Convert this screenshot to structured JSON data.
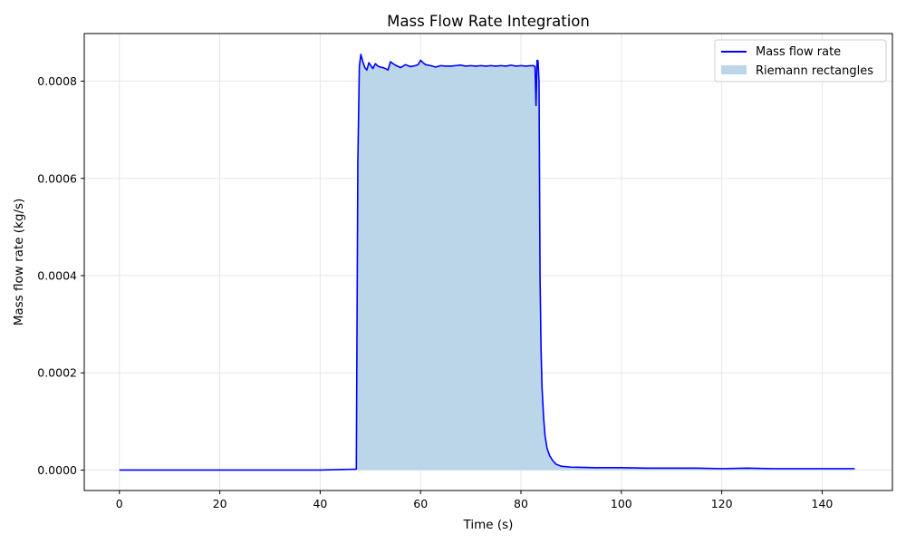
{
  "chart_data": {
    "type": "line",
    "title": "Mass Flow Rate Integration",
    "xlabel": "Time (s)",
    "ylabel": "Mass flow rate (kg/s)",
    "xlim": [
      -7,
      154
    ],
    "ylim": [
      -4.2e-05,
      0.000898
    ],
    "xticks": [
      0,
      20,
      40,
      60,
      80,
      100,
      120,
      140
    ],
    "xtick_labels": [
      "0",
      "20",
      "40",
      "60",
      "80",
      "100",
      "120",
      "140"
    ],
    "yticks": [
      0,
      0.0002,
      0.0004,
      0.0006,
      0.0008
    ],
    "ytick_labels": [
      "0.0000",
      "0.0002",
      "0.0004",
      "0.0006",
      "0.0008"
    ],
    "grid": true,
    "legend_position": "top-right",
    "colors": {
      "line": "#0000ff",
      "fill": "#bad6e8",
      "grid": "#e6e6e6"
    },
    "series": [
      {
        "name": "Mass flow rate",
        "kind": "line",
        "x": [
          0,
          10,
          20,
          30,
          40,
          47.2,
          47.5,
          47.8,
          48.1,
          48.5,
          48.9,
          49.3,
          49.7,
          50.1,
          50.5,
          51.0,
          51.5,
          52.0,
          52.5,
          53.0,
          53.5,
          54.0,
          54.5,
          55.0,
          56.0,
          57.0,
          58.0,
          59.0,
          59.5,
          60.0,
          60.5,
          61.0,
          62.0,
          63.0,
          64.0,
          65.0,
          66.0,
          67.0,
          68.0,
          69.0,
          70.0,
          71.0,
          72.0,
          73.0,
          74.0,
          75.0,
          76.0,
          77.0,
          78.0,
          79.0,
          80.0,
          81.0,
          82.0,
          82.5,
          82.8,
          83.0,
          83.2,
          83.4,
          83.6,
          83.8,
          84.0,
          84.2,
          84.5,
          84.8,
          85.2,
          85.7,
          86.3,
          87.0,
          88.0,
          90.0,
          95.0,
          100.0,
          105.0,
          110.0,
          115.0,
          120.0,
          125.0,
          130.0,
          135.0,
          140.0,
          146.5
        ],
        "y": [
          0,
          0,
          0,
          0,
          0,
          2e-06,
          0.00063,
          0.00083,
          0.000855,
          0.00084,
          0.000828,
          0.000823,
          0.000838,
          0.000832,
          0.000826,
          0.000836,
          0.000831,
          0.000829,
          0.000828,
          0.000826,
          0.000823,
          0.00084,
          0.000836,
          0.000833,
          0.000828,
          0.000834,
          0.00083,
          0.000832,
          0.000834,
          0.000843,
          0.000838,
          0.000834,
          0.000832,
          0.000829,
          0.000832,
          0.000831,
          0.000831,
          0.000832,
          0.000833,
          0.000831,
          0.000832,
          0.000831,
          0.000832,
          0.000831,
          0.000832,
          0.000831,
          0.000832,
          0.000831,
          0.000833,
          0.000831,
          0.000832,
          0.000831,
          0.000832,
          0.000832,
          0.00083,
          0.00075,
          0.000843,
          0.000842,
          0.0008,
          0.0004,
          0.00025,
          0.00017,
          0.00011,
          7e-05,
          4.5e-05,
          3e-05,
          2e-05,
          1.2e-05,
          8e-06,
          6e-06,
          5e-06,
          5e-06,
          4e-06,
          4e-06,
          4e-06,
          3e-06,
          4e-06,
          3e-06,
          3e-06,
          3e-06,
          3e-06
        ]
      },
      {
        "name": "Riemann rectangles",
        "kind": "area"
      }
    ]
  }
}
